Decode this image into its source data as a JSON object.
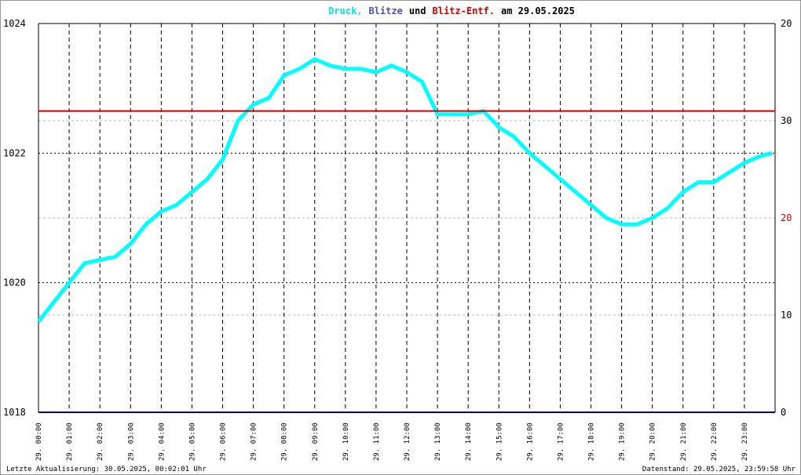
{
  "chart_data": {
    "type": "line",
    "title_parts": [
      "Druck,",
      "Blitze",
      "und",
      "Blitz-Entf.",
      "am 29.05.2025"
    ],
    "title_colors": [
      "#00e8e8",
      "#5050c0",
      "#000000",
      "#d00000",
      "#000000"
    ],
    "footer_left": "Letzte Aktualisierung: 30.05.2025, 00:02:01 Uhr",
    "footer_right": "Datenstand: 29.05.2025, 23:59:58 Uhr",
    "xlim": [
      0,
      24
    ],
    "xticks": [
      {
        "value": 0,
        "label": "29. 00:00"
      },
      {
        "value": 1,
        "label": "29. 01:00"
      },
      {
        "value": 2,
        "label": "29. 02:00"
      },
      {
        "value": 3,
        "label": "29. 03:00"
      },
      {
        "value": 4,
        "label": "29. 04:00"
      },
      {
        "value": 5,
        "label": "29. 05:00"
      },
      {
        "value": 6,
        "label": "29. 06:00"
      },
      {
        "value": 7,
        "label": "29. 07:00"
      },
      {
        "value": 8,
        "label": "29. 08:00"
      },
      {
        "value": 9,
        "label": "29. 09:00"
      },
      {
        "value": 10,
        "label": "29. 10:00"
      },
      {
        "value": 11,
        "label": "29. 11:00"
      },
      {
        "value": 12,
        "label": "29. 12:00"
      },
      {
        "value": 13,
        "label": "29. 13:00"
      },
      {
        "value": 14,
        "label": "29. 14:00"
      },
      {
        "value": 15,
        "label": "29. 15:00"
      },
      {
        "value": 16,
        "label": "29. 16:00"
      },
      {
        "value": 17,
        "label": "29. 17:00"
      },
      {
        "value": 18,
        "label": "29. 18:00"
      },
      {
        "value": 19,
        "label": "29. 19:00"
      },
      {
        "value": 20,
        "label": "29. 20:00"
      },
      {
        "value": 21,
        "label": "29. 21:00"
      },
      {
        "value": 22,
        "label": "29. 22:00"
      },
      {
        "value": 23,
        "label": "29. 23:00"
      }
    ],
    "ylim": [
      1018,
      1024
    ],
    "yticks": [
      1018,
      1020,
      1022,
      1024
    ],
    "y2lim": [
      0,
      40
    ],
    "y2ticks": [
      0,
      10,
      20,
      30
    ],
    "y2tick_colors": [
      "#000000",
      "#000000",
      "#d00000",
      "#000000"
    ],
    "y3lim": [
      0,
      20
    ],
    "y3ticks": [
      20
    ],
    "grid": true,
    "series": [
      {
        "color": "#00ffff",
        "x": [
          0,
          0.5,
          1,
          1.5,
          2,
          2.5,
          3,
          3.5,
          4,
          4.5,
          5,
          5.5,
          6,
          6.5,
          7,
          7.5,
          8,
          8.5,
          9,
          9.5,
          10,
          10.5,
          11,
          11.5,
          12,
          12.5,
          13,
          13.5,
          14,
          14.5,
          15,
          15.5,
          16,
          16.5,
          17,
          17.5,
          18,
          18.5,
          19,
          19.5,
          20,
          20.5,
          21,
          21.5,
          22,
          22.5,
          23,
          23.5,
          23.9
        ],
        "values": [
          1019.4,
          1019.7,
          1020.0,
          1020.3,
          1020.35,
          1020.4,
          1020.6,
          1020.9,
          1021.1,
          1021.2,
          1021.4,
          1021.6,
          1021.9,
          1022.5,
          1022.75,
          1022.85,
          1023.2,
          1023.3,
          1023.45,
          1023.35,
          1023.3,
          1023.3,
          1023.25,
          1023.35,
          1023.25,
          1023.1,
          1022.6,
          1022.6,
          1022.6,
          1022.65,
          1022.4,
          1022.25,
          1022.0,
          1021.8,
          1021.6,
          1021.4,
          1021.2,
          1021.0,
          1020.9,
          1020.9,
          1021.0,
          1021.15,
          1021.4,
          1021.55,
          1021.55,
          1021.7,
          1021.85,
          1021.95,
          1022.0
        ]
      },
      {
        "color": "#000080",
        "axis": "y3",
        "x": [
          0,
          24
        ],
        "values": [
          0,
          0
        ]
      },
      {
        "color": "#d00000",
        "axis": "y2",
        "x": [
          0,
          24
        ],
        "values": [
          31,
          31
        ]
      }
    ]
  }
}
